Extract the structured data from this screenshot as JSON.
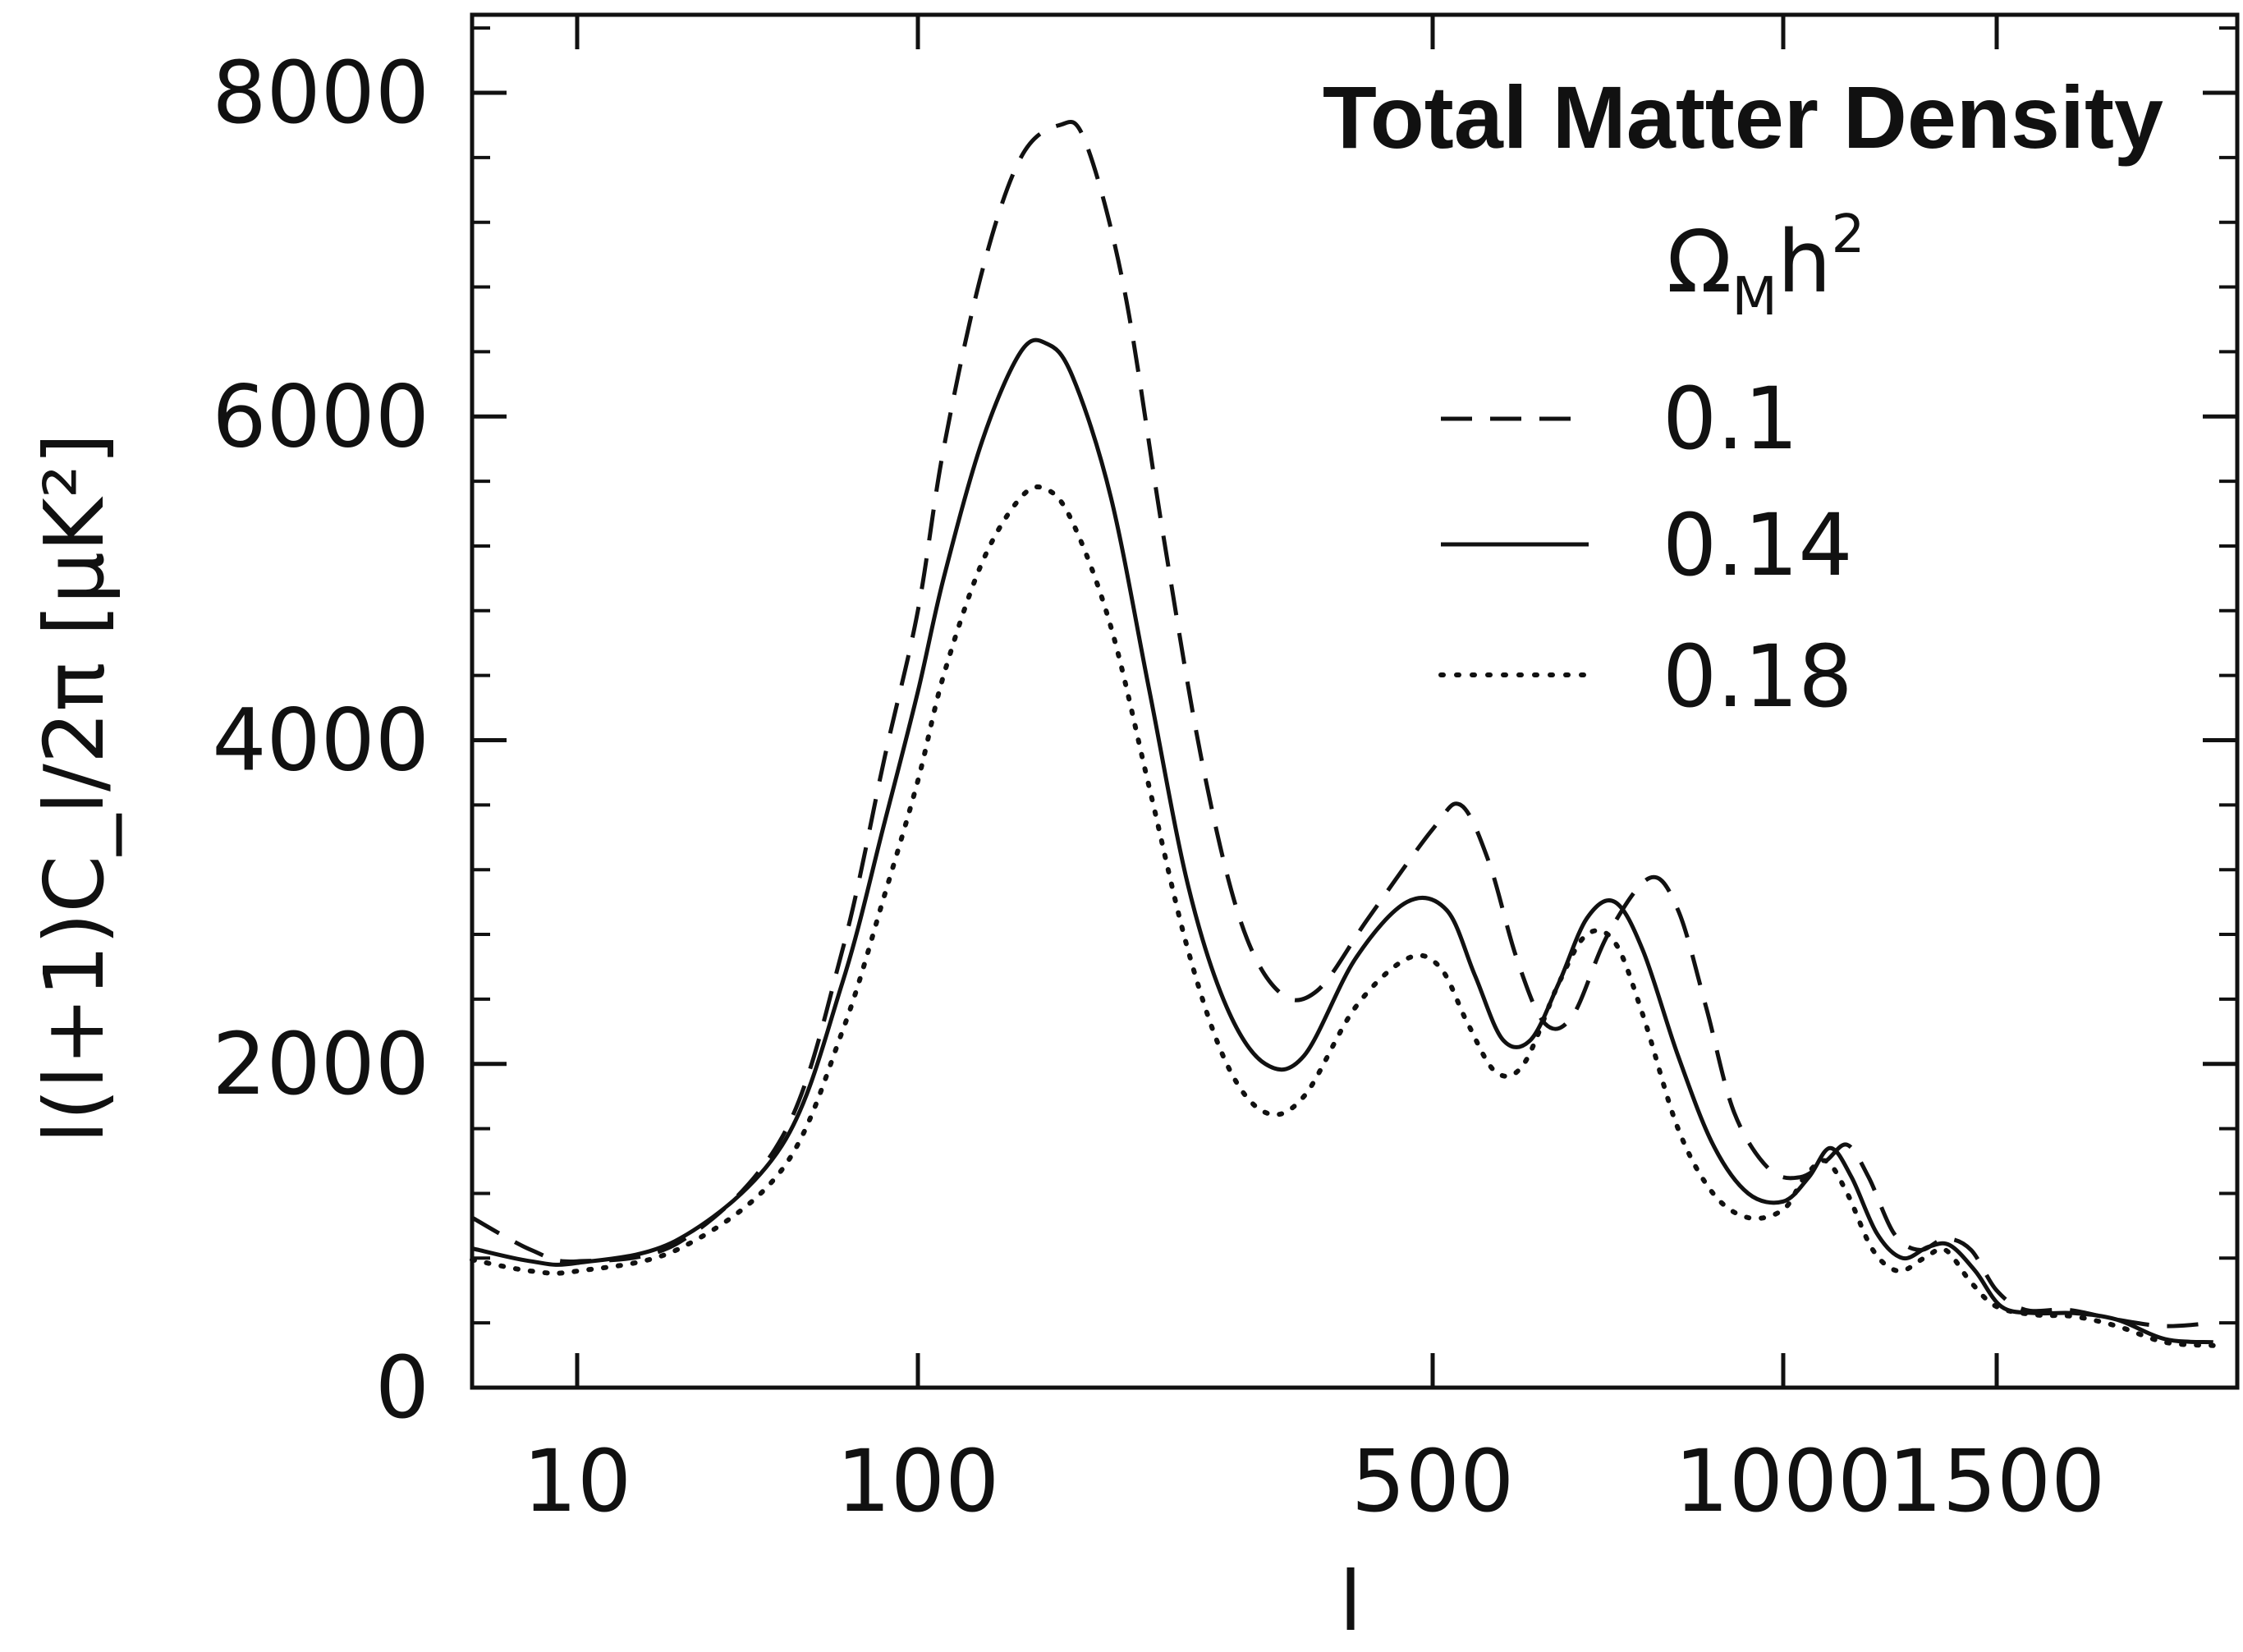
{
  "chart_data": {
    "type": "line",
    "title": "Total Matter Density",
    "xlabel": "l",
    "ylabel": "l(l+1)C_l/2π [μK²]",
    "x_scale": "nonlinear (log for l<100, then linear)",
    "xlim": [
      6,
      2000
    ],
    "ylim": [
      0,
      8500
    ],
    "x_ticks": [
      10,
      100,
      500,
      1000,
      1500
    ],
    "x_tick_labels": [
      "10",
      "100",
      "500",
      "1000",
      "1500"
    ],
    "y_ticks": [
      0,
      2000,
      4000,
      6000,
      8000
    ],
    "y_tick_labels": [
      "0",
      "2000",
      "4000",
      "6000",
      "8000"
    ],
    "legend": {
      "title_main": "Ω",
      "title_sub": "M",
      "title_rest": "h",
      "title_sup": "2",
      "position": "top-right"
    },
    "series": [
      {
        "name": "0.1",
        "style": "dashed",
        "points": [
          [
            6,
            1050
          ],
          [
            8,
            850
          ],
          [
            10,
            780
          ],
          [
            20,
            900
          ],
          [
            40,
            1550
          ],
          [
            60,
            2700
          ],
          [
            80,
            3900
          ],
          [
            100,
            4800
          ],
          [
            120,
            5800
          ],
          [
            150,
            6900
          ],
          [
            180,
            7600
          ],
          [
            210,
            7800
          ],
          [
            230,
            7700
          ],
          [
            260,
            6800
          ],
          [
            290,
            5300
          ],
          [
            320,
            3900
          ],
          [
            350,
            2900
          ],
          [
            380,
            2450
          ],
          [
            410,
            2450
          ],
          [
            450,
            2900
          ],
          [
            500,
            3450
          ],
          [
            540,
            3600
          ],
          [
            580,
            3250
          ],
          [
            620,
            2650
          ],
          [
            660,
            2250
          ],
          [
            700,
            2300
          ],
          [
            750,
            2800
          ],
          [
            810,
            3150
          ],
          [
            850,
            2950
          ],
          [
            890,
            2350
          ],
          [
            930,
            1700
          ],
          [
            980,
            1350
          ],
          [
            1040,
            1300
          ],
          [
            1100,
            1400
          ],
          [
            1150,
            1500
          ],
          [
            1200,
            1300
          ],
          [
            1260,
            950
          ],
          [
            1320,
            850
          ],
          [
            1380,
            920
          ],
          [
            1440,
            850
          ],
          [
            1500,
            600
          ],
          [
            1560,
            480
          ],
          [
            1650,
            480
          ],
          [
            1750,
            420
          ],
          [
            1850,
            380
          ],
          [
            1950,
            400
          ]
        ]
      },
      {
        "name": "0.14",
        "style": "solid",
        "points": [
          [
            6,
            860
          ],
          [
            8,
            780
          ],
          [
            10,
            770
          ],
          [
            20,
            920
          ],
          [
            40,
            1500
          ],
          [
            60,
            2500
          ],
          [
            80,
            3500
          ],
          [
            100,
            4300
          ],
          [
            120,
            5000
          ],
          [
            150,
            5850
          ],
          [
            180,
            6400
          ],
          [
            200,
            6450
          ],
          [
            220,
            6250
          ],
          [
            250,
            5500
          ],
          [
            280,
            4300
          ],
          [
            310,
            3100
          ],
          [
            340,
            2350
          ],
          [
            370,
            2000
          ],
          [
            400,
            2050
          ],
          [
            440,
            2650
          ],
          [
            480,
            3000
          ],
          [
            520,
            2950
          ],
          [
            560,
            2550
          ],
          [
            600,
            2150
          ],
          [
            640,
            2150
          ],
          [
            680,
            2500
          ],
          [
            720,
            2900
          ],
          [
            760,
            3000
          ],
          [
            800,
            2700
          ],
          [
            850,
            2050
          ],
          [
            900,
            1500
          ],
          [
            950,
            1200
          ],
          [
            1000,
            1150
          ],
          [
            1060,
            1300
          ],
          [
            1110,
            1480
          ],
          [
            1160,
            1300
          ],
          [
            1220,
            950
          ],
          [
            1280,
            800
          ],
          [
            1340,
            870
          ],
          [
            1390,
            880
          ],
          [
            1450,
            720
          ],
          [
            1510,
            500
          ],
          [
            1580,
            460
          ],
          [
            1660,
            460
          ],
          [
            1750,
            420
          ],
          [
            1850,
            300
          ],
          [
            1950,
            280
          ]
        ]
      },
      {
        "name": "0.18",
        "style": "dotted",
        "points": [
          [
            6,
            790
          ],
          [
            8,
            720
          ],
          [
            10,
            720
          ],
          [
            20,
            860
          ],
          [
            40,
            1350
          ],
          [
            60,
            2200
          ],
          [
            80,
            3050
          ],
          [
            100,
            3750
          ],
          [
            120,
            4400
          ],
          [
            150,
            5100
          ],
          [
            180,
            5500
          ],
          [
            200,
            5550
          ],
          [
            220,
            5350
          ],
          [
            250,
            4700
          ],
          [
            280,
            3700
          ],
          [
            310,
            2700
          ],
          [
            340,
            2000
          ],
          [
            370,
            1700
          ],
          [
            400,
            1800
          ],
          [
            440,
            2350
          ],
          [
            480,
            2650
          ],
          [
            510,
            2600
          ],
          [
            550,
            2250
          ],
          [
            590,
            1950
          ],
          [
            630,
            2000
          ],
          [
            680,
            2500
          ],
          [
            720,
            2800
          ],
          [
            760,
            2750
          ],
          [
            800,
            2300
          ],
          [
            850,
            1600
          ],
          [
            900,
            1200
          ],
          [
            950,
            1050
          ],
          [
            1000,
            1100
          ],
          [
            1050,
            1300
          ],
          [
            1100,
            1400
          ],
          [
            1150,
            1200
          ],
          [
            1210,
            850
          ],
          [
            1270,
            720
          ],
          [
            1330,
            800
          ],
          [
            1380,
            850
          ],
          [
            1440,
            650
          ],
          [
            1500,
            500
          ],
          [
            1580,
            450
          ],
          [
            1660,
            440
          ],
          [
            1750,
            380
          ],
          [
            1850,
            280
          ],
          [
            1950,
            260
          ]
        ]
      }
    ]
  }
}
